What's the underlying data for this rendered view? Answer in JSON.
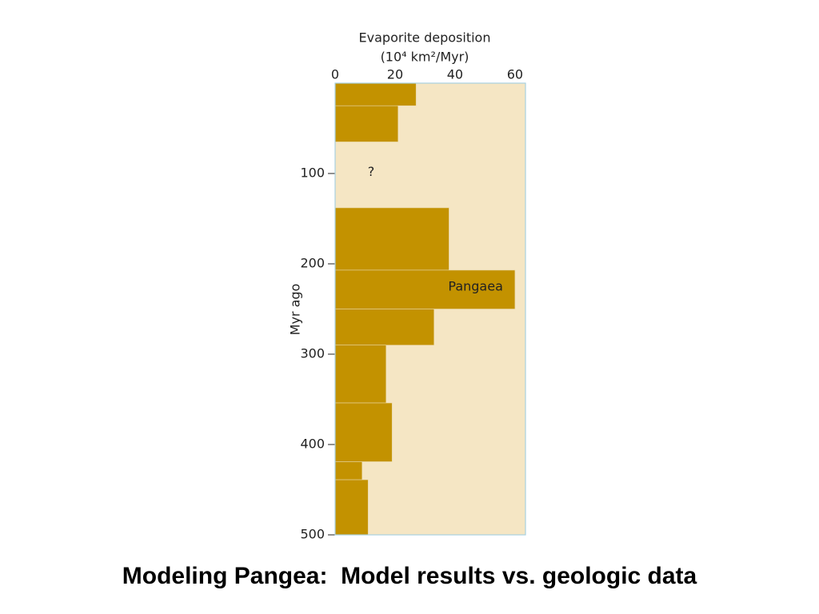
{
  "chart_data": {
    "type": "histogram",
    "title": "Modeling Pangea:  Model results vs. geologic data",
    "xlabel": [
      "Evaporite deposition",
      "(10⁴ km²/Myr)"
    ],
    "ylabel": "Myr ago",
    "orientation": "horizontal",
    "bins": [
      0,
      25,
      65,
      138,
      207,
      250,
      290,
      354,
      419,
      439,
      500
    ],
    "values": [
      27,
      21,
      null,
      38,
      60,
      33,
      17,
      19,
      9,
      11
    ],
    "color": "#c39200",
    "background": "#f5e6c4",
    "annotations": [
      "?",
      "Pangaea"
    ],
    "xlim": [
      0,
      63.5
    ],
    "xticks": [
      0,
      20,
      40,
      60
    ],
    "ylim": [
      0,
      500
    ],
    "yticks": [
      100,
      200,
      300,
      400,
      500
    ]
  }
}
